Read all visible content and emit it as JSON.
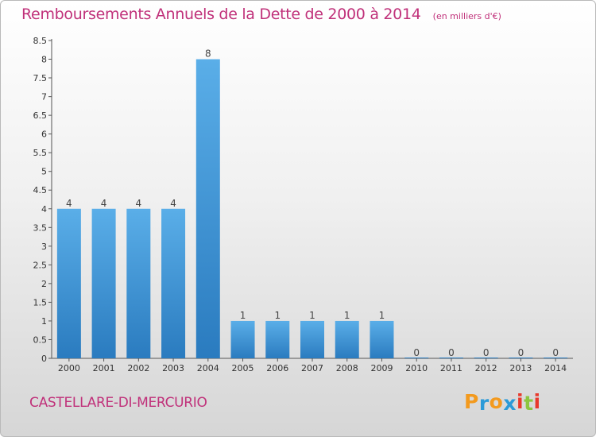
{
  "chart_data": {
    "type": "bar",
    "title": "Remboursements Annuels de la Dette de 2000 à 2014",
    "unit_note": "(en milliers d'€)",
    "categories": [
      "2000",
      "2001",
      "2002",
      "2003",
      "2004",
      "2005",
      "2006",
      "2007",
      "2008",
      "2009",
      "2010",
      "2011",
      "2012",
      "2013",
      "2014"
    ],
    "values": [
      4,
      4,
      4,
      4,
      8,
      1,
      1,
      1,
      1,
      1,
      0,
      0,
      0,
      0,
      0
    ],
    "value_labels": [
      "4",
      "4",
      "4",
      "4",
      "8",
      "1",
      "1",
      "1",
      "1",
      "1",
      "0",
      "0",
      "0",
      "0",
      "0"
    ],
    "ylim": [
      0,
      8.5
    ],
    "yticks": [
      0,
      0.5,
      1,
      1.5,
      2,
      2.5,
      3,
      3.5,
      4,
      4.5,
      5,
      5.5,
      6,
      6.5,
      7,
      7.5,
      8,
      8.5
    ],
    "ytick_labels": [
      "0",
      "0.5",
      "1",
      "1.5",
      "2",
      "2.5",
      "3",
      "3.5",
      "4",
      "4.5",
      "5",
      "5.5",
      "6",
      "6.5",
      "7",
      "7.5",
      "8",
      "8.5"
    ],
    "xlabel": "",
    "ylabel": "",
    "grid": false,
    "legend": "none",
    "bar_color_top": "#5aaee8",
    "bar_color_bottom": "#2a7bbf"
  },
  "place_name": "CASTELLARE-DI-MERCURIO",
  "logo": {
    "letters": [
      "P",
      "r",
      "o",
      "x",
      "i",
      "t",
      "i"
    ],
    "colors": [
      "#f39a1e",
      "#2a9ad8",
      "#f39a1e",
      "#2a9ad8",
      "#e8392b",
      "#8cc63f",
      "#e8392b"
    ]
  },
  "colors": {
    "accent": "#c0317a",
    "axis": "#555555"
  }
}
